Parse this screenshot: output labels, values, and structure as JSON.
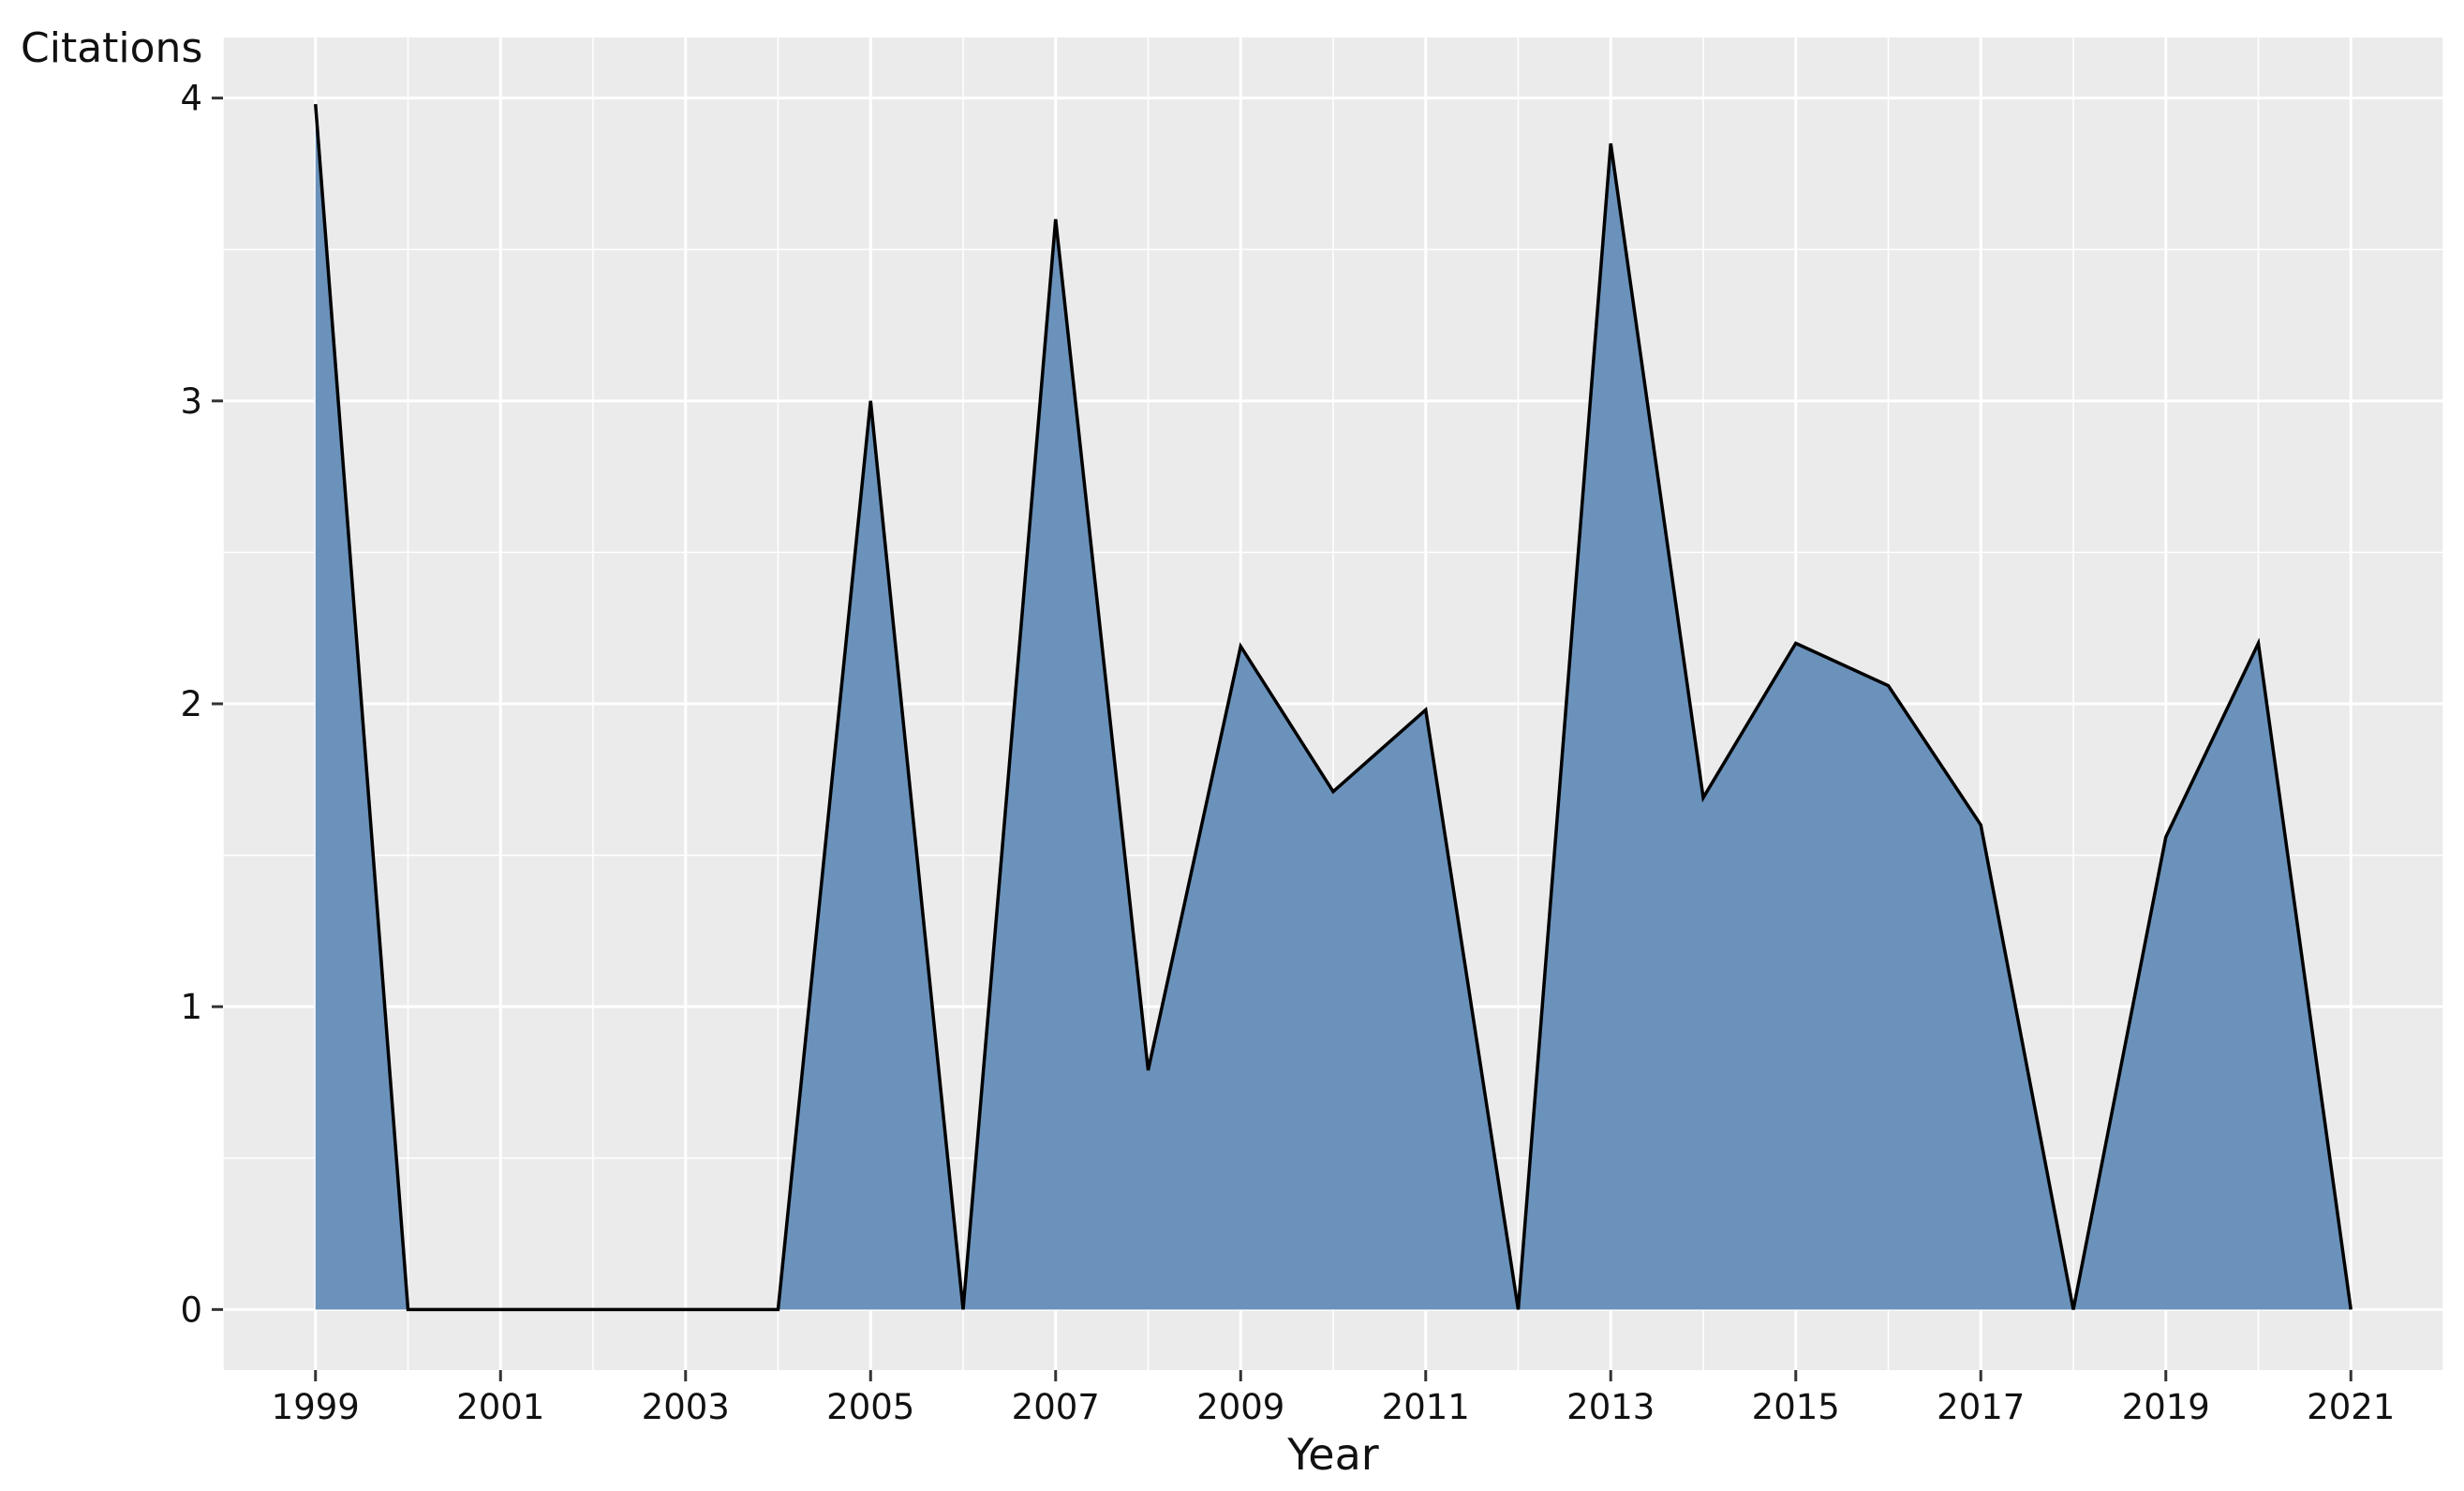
{
  "chart_data": {
    "type": "area",
    "title": "",
    "xlabel": "Year",
    "ylabel": "Citations",
    "x": [
      1999,
      2000,
      2001,
      2002,
      2003,
      2004,
      2005,
      2006,
      2007,
      2008,
      2009,
      2010,
      2011,
      2012,
      2013,
      2014,
      2015,
      2016,
      2017,
      2018,
      2019,
      2020,
      2021
    ],
    "values": [
      3.98,
      0,
      0,
      0,
      0,
      0,
      3.0,
      0,
      3.6,
      0.79,
      2.19,
      1.71,
      1.98,
      0,
      3.85,
      1.69,
      2.2,
      2.06,
      1.6,
      0,
      1.56,
      2.2,
      0
    ],
    "x_ticks": [
      "1999",
      "2001",
      "2003",
      "2005",
      "2007",
      "2009",
      "2011",
      "2013",
      "2015",
      "2017",
      "2019",
      "2021"
    ],
    "y_ticks": [
      "0",
      "1",
      "2",
      "3",
      "4"
    ],
    "xlim": [
      1998,
      2022
    ],
    "ylim": [
      -0.2,
      4.2
    ],
    "grid": true,
    "legend": "none",
    "colors": {
      "fill": "#6b92ba",
      "line": "#000000",
      "panel": "#ebebeb",
      "grid": "#ffffff"
    }
  }
}
